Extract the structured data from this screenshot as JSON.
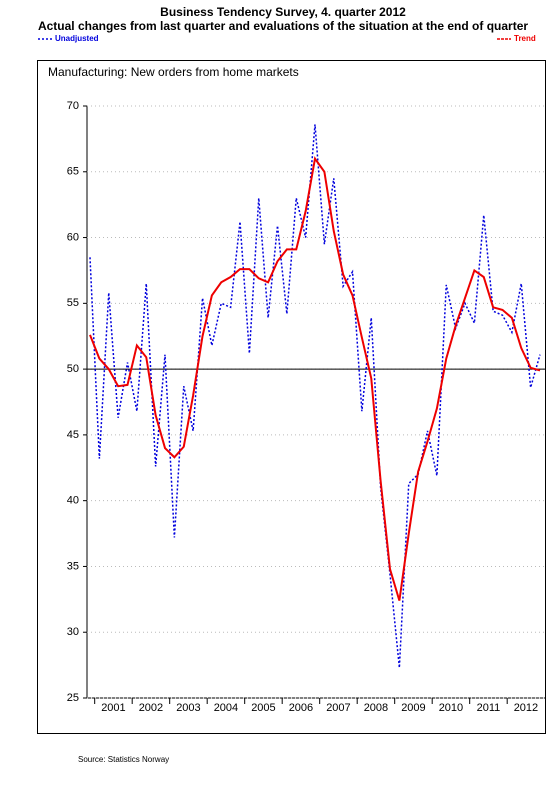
{
  "chart_data": {
    "type": "line",
    "title": "Business Tendency Survey, 4. quarter 2012",
    "subtitle": "Actual changes from last quarter and evaluations of the situation at the end of quarter",
    "panel_title": "Manufacturing:   New orders from home markets",
    "source": "Source: Statistics Norway",
    "categories": [
      null,
      null,
      null,
      "2001",
      null,
      null,
      null,
      "2002",
      null,
      null,
      null,
      "2003",
      null,
      null,
      null,
      "2004",
      null,
      null,
      null,
      "2005",
      null,
      null,
      null,
      "2006",
      null,
      null,
      null,
      "2007",
      null,
      null,
      null,
      "2008",
      null,
      null,
      null,
      "2009",
      null,
      null,
      null,
      "2010",
      null,
      null,
      null,
      "2011",
      null,
      null,
      null,
      "2012",
      null
    ],
    "series": [
      {
        "name": "Unadjusted",
        "color": "#0000dd",
        "dashed": true,
        "values": [
          58.5,
          43.2,
          55.8,
          46.3,
          50.5,
          46.8,
          56.5,
          42.6,
          51.1,
          37.2,
          48.7,
          45.3,
          55.4,
          51.8,
          55.0,
          54.7,
          61.2,
          51.2,
          63.0,
          53.9,
          60.9,
          54.2,
          63.0,
          60.0,
          68.6,
          59.5,
          64.5,
          56.3,
          57.4,
          46.8,
          53.9,
          41.0,
          34.4,
          27.3,
          41.3,
          42.0,
          45.3,
          41.9,
          56.4,
          53.1,
          55.0,
          53.5,
          61.7,
          54.4,
          54.1,
          52.8,
          56.5,
          48.6,
          51.1
        ]
      },
      {
        "name": "Trend",
        "color": "#ee0000",
        "dashed": false,
        "values": [
          52.6,
          50.8,
          50.0,
          48.7,
          48.8,
          51.8,
          50.9,
          46.5,
          44.0,
          43.3,
          44.1,
          48.0,
          52.5,
          55.6,
          56.6,
          57.0,
          57.6,
          57.6,
          56.9,
          56.6,
          58.2,
          59.1,
          59.1,
          62.0,
          66.0,
          65.0,
          60.5,
          57.2,
          55.6,
          52.4,
          49.3,
          41.5,
          34.8,
          32.4,
          37.5,
          42.2,
          44.5,
          47.0,
          50.8,
          53.3,
          55.4,
          57.5,
          57.0,
          54.7,
          54.5,
          53.9,
          51.6,
          50.1,
          49.9
        ]
      }
    ],
    "reference_line": 50,
    "ylim": [
      25,
      70
    ],
    "yticks": [
      25,
      30,
      35,
      40,
      45,
      50,
      55,
      60,
      65,
      70
    ]
  }
}
